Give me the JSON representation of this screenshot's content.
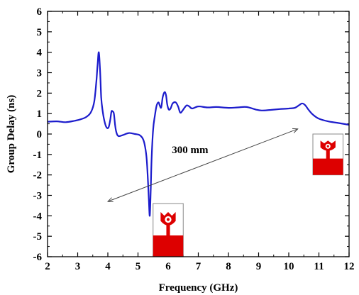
{
  "chart_data": {
    "type": "line",
    "title": "",
    "xlabel": "Frequency (GHz)",
    "ylabel": "Group Delay (ns)",
    "xlim": [
      2,
      12
    ],
    "ylim": [
      -6,
      6
    ],
    "xticks": [
      2,
      3,
      4,
      5,
      6,
      7,
      8,
      9,
      10,
      11,
      12
    ],
    "yticks": [
      -6,
      -5,
      -4,
      -3,
      -2,
      -1,
      0,
      1,
      2,
      3,
      4,
      5,
      6
    ],
    "grid": false,
    "legend": "none",
    "series": [
      {
        "color": "#1c1ccc",
        "x": [
          2.0,
          2.3,
          2.6,
          2.9,
          3.1,
          3.3,
          3.45,
          3.55,
          3.62,
          3.66,
          3.7,
          3.74,
          3.78,
          3.83,
          3.9,
          3.97,
          4.03,
          4.08,
          4.12,
          4.16,
          4.2,
          4.24,
          4.28,
          4.35,
          4.5,
          4.7,
          4.9,
          5.05,
          5.15,
          5.22,
          5.28,
          5.32,
          5.36,
          5.39,
          5.42,
          5.45,
          5.5,
          5.56,
          5.62,
          5.68,
          5.72,
          5.77,
          5.82,
          5.88,
          5.93,
          5.97,
          6.02,
          6.08,
          6.15,
          6.25,
          6.33,
          6.4,
          6.48,
          6.55,
          6.62,
          6.7,
          6.8,
          7.0,
          7.3,
          7.6,
          8.0,
          8.3,
          8.6,
          8.9,
          9.1,
          9.4,
          9.7,
          10.0,
          10.2,
          10.35,
          10.45,
          10.55,
          10.65,
          10.8,
          11.0,
          11.3,
          11.6,
          12.0
        ],
        "y": [
          0.6,
          0.62,
          0.58,
          0.65,
          0.72,
          0.85,
          1.1,
          1.6,
          2.6,
          3.4,
          4.0,
          3.2,
          1.8,
          1.1,
          0.55,
          0.3,
          0.35,
          0.7,
          1.1,
          1.1,
          1.0,
          0.45,
          0.1,
          -0.1,
          -0.05,
          0.05,
          0.0,
          -0.05,
          -0.2,
          -0.5,
          -1.1,
          -2.0,
          -3.2,
          -4.0,
          -2.9,
          -1.3,
          0.2,
          0.9,
          1.4,
          1.55,
          1.4,
          1.3,
          1.8,
          2.05,
          1.9,
          1.45,
          1.2,
          1.25,
          1.5,
          1.55,
          1.35,
          1.05,
          1.15,
          1.3,
          1.4,
          1.35,
          1.25,
          1.35,
          1.3,
          1.32,
          1.28,
          1.3,
          1.32,
          1.2,
          1.15,
          1.18,
          1.22,
          1.25,
          1.28,
          1.42,
          1.5,
          1.4,
          1.2,
          0.95,
          0.75,
          0.62,
          0.55,
          0.45
        ]
      }
    ],
    "annotations": [
      {
        "text": "300 mm",
        "from": [
          4.0,
          -3.3
        ],
        "to": [
          10.3,
          0.25
        ]
      }
    ]
  },
  "colors": {
    "line": "#1c1ccc",
    "antenna_patch": "#dd0000"
  },
  "inset_images": [
    {
      "icon": "antenna-icon",
      "at": [
        5.5,
        -3.4
      ],
      "size_units": [
        1.0,
        2.6
      ]
    },
    {
      "icon": "antenna-icon",
      "at": [
        10.8,
        0.0
      ],
      "size_units": [
        1.0,
        2.0
      ]
    }
  ]
}
